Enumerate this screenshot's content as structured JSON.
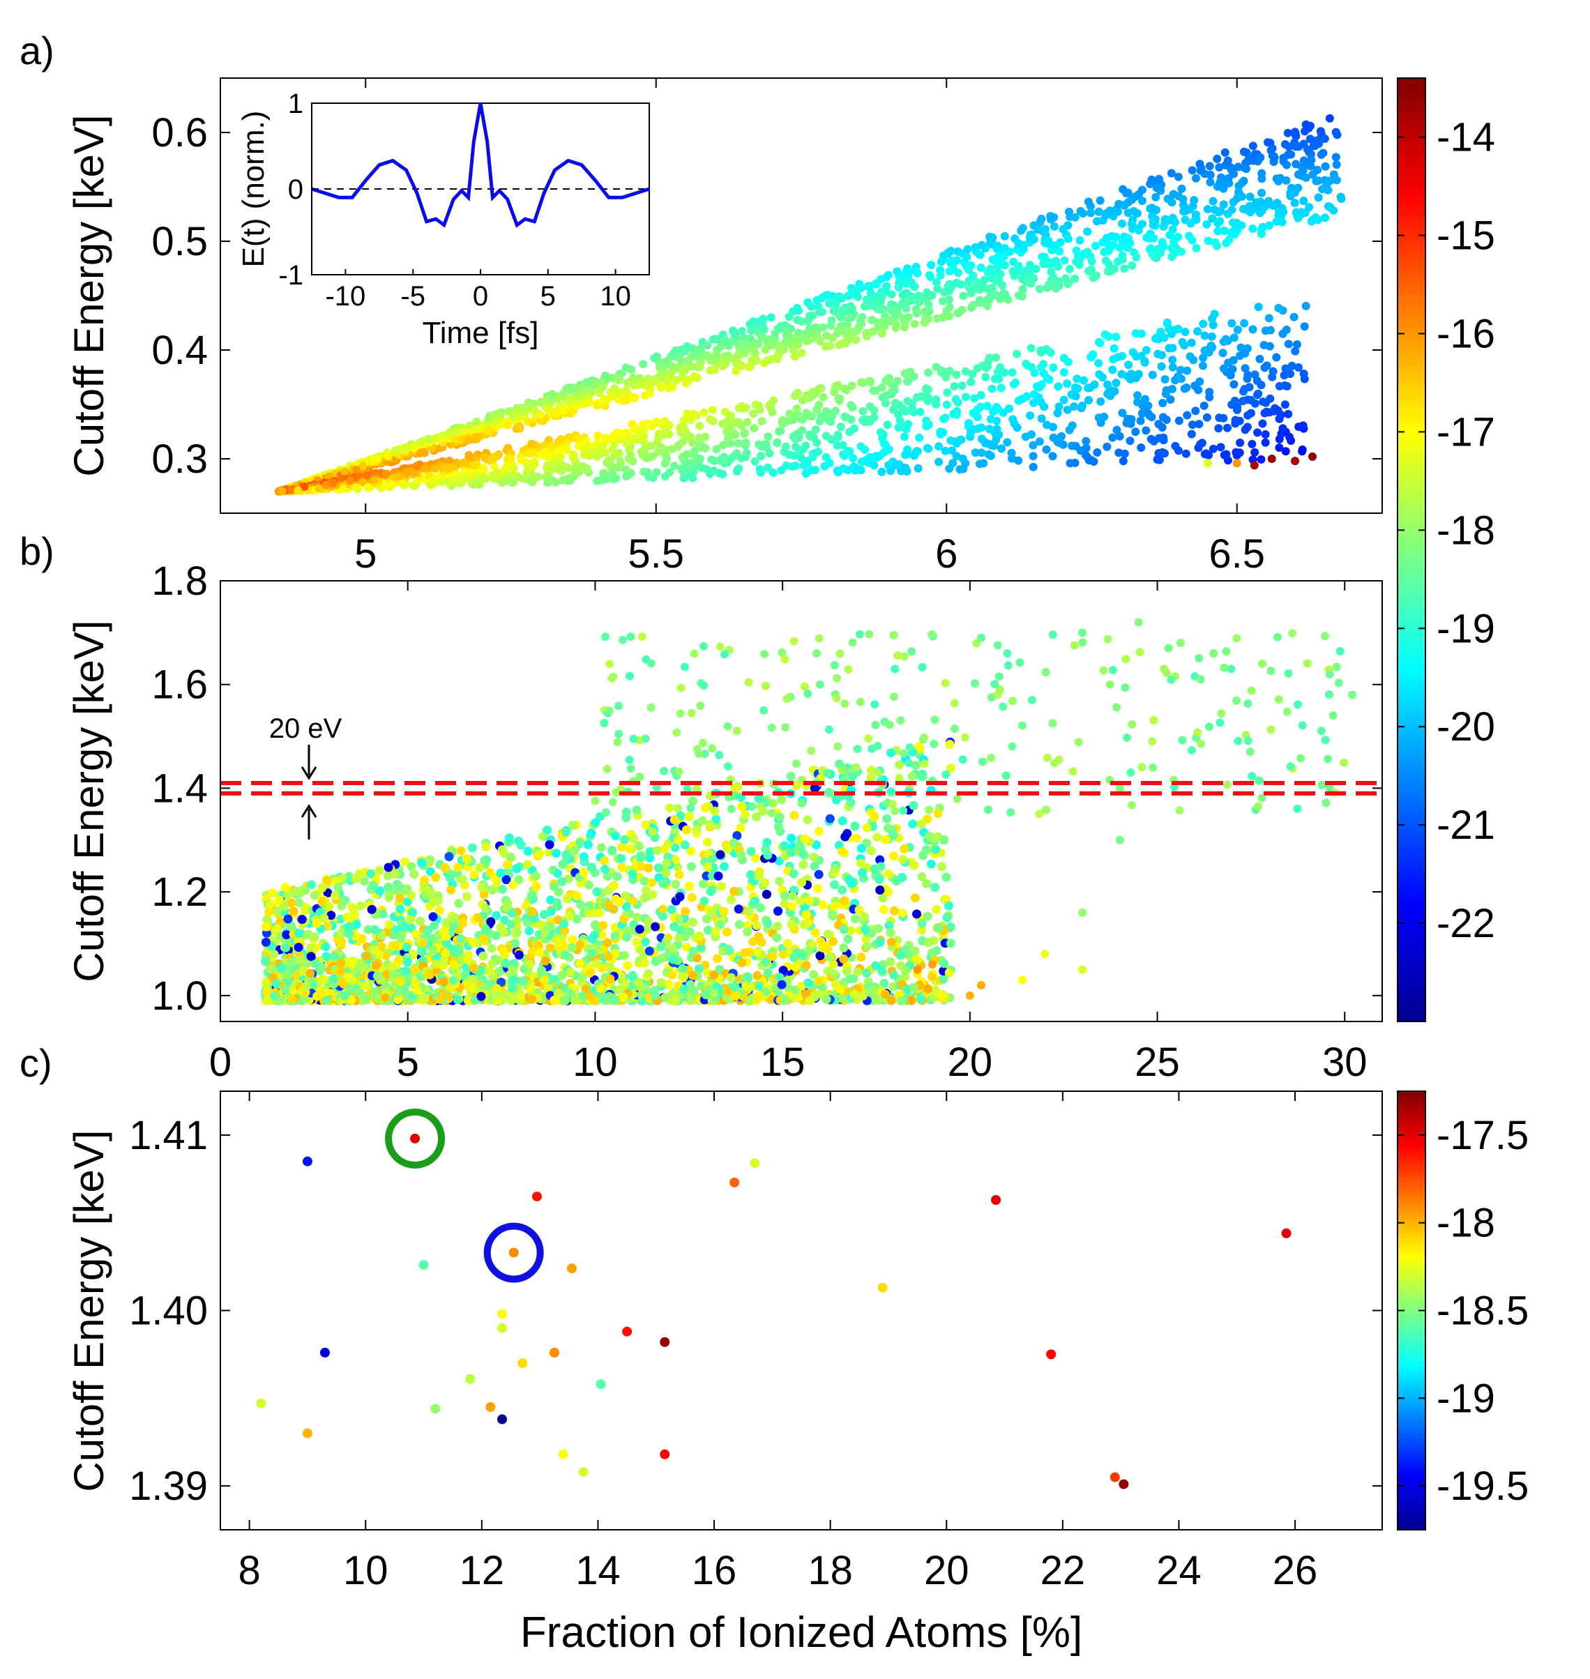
{
  "chart_data": [
    {
      "panel_label": "a)",
      "type": "scatter",
      "xlabel": "",
      "ylabel": "Cutoff Energy [keV]",
      "xlim": [
        4.75,
        6.75
      ],
      "ylim": [
        0.25,
        0.65
      ],
      "xticks": [
        "5",
        "5.5",
        "6",
        "6.5"
      ],
      "xtick_values": [
        5,
        5.5,
        6,
        6.5
      ],
      "yticks": [
        "0.3",
        "0.4",
        "0.5",
        "0.6"
      ],
      "ytick_values": [
        0.3,
        0.4,
        0.5,
        0.6
      ],
      "colorbar": {
        "ticks": [
          "-14",
          "-15",
          "-16",
          "-17",
          "-18",
          "-19",
          "-20",
          "-21",
          "-22"
        ],
        "tick_values": [
          -14,
          -15,
          -16,
          -17,
          -18,
          -19,
          -20,
          -21,
          -22
        ],
        "range": [
          -23,
          -13.4
        ]
      },
      "bands": [
        {
          "x_range": [
            4.85,
            6.68
          ],
          "lower_y": [
            0.27,
            0.525
          ],
          "upper_y": [
            0.27,
            0.62
          ],
          "color_start": -16.3,
          "color_end": -20.5
        },
        {
          "x_range": [
            4.85,
            6.62
          ],
          "lower_y": [
            0.27,
            0.3
          ],
          "upper_y": [
            0.27,
            0.45
          ],
          "color_start": -16.0,
          "color_end": -21.0
        }
      ],
      "points": [
        [
          6.5,
          0.296,
          -16.0
        ],
        [
          6.53,
          0.294,
          -13.8
        ],
        [
          6.56,
          0.3,
          -13.7
        ],
        [
          6.6,
          0.298,
          -13.8
        ],
        [
          6.63,
          0.302,
          -13.6
        ],
        [
          6.45,
          0.296,
          -17.3
        ]
      ],
      "inset": {
        "type": "line",
        "xlabel": "Time [fs]",
        "ylabel": "E(t) (norm.)",
        "xlim": [
          -12.5,
          12.5
        ],
        "ylim": [
          -1,
          1
        ],
        "xticks": [
          "-10",
          "-5",
          "0",
          "5",
          "10"
        ],
        "xtick_values": [
          -10,
          -5,
          0,
          5,
          10
        ],
        "yticks": [
          "1",
          "0",
          "-1"
        ],
        "ytick_values": [
          1,
          0,
          -1
        ],
        "x": [
          -12.5,
          -11.5,
          -10.5,
          -9.5,
          -8.5,
          -7.5,
          -6.5,
          -5.5,
          -4.7,
          -4.0,
          -3.3,
          -2.7,
          -2.0,
          -1.4,
          -0.9,
          -0.5,
          0,
          0.5,
          0.9,
          1.4,
          2.0,
          2.7,
          3.3,
          4.0,
          4.7,
          5.5,
          6.5,
          7.5,
          8.5,
          9.5,
          10.5,
          11.5,
          12.5
        ],
        "y": [
          0.0,
          -0.05,
          -0.1,
          -0.1,
          0.1,
          0.28,
          0.33,
          0.22,
          -0.05,
          -0.38,
          -0.35,
          -0.42,
          -0.12,
          -0.02,
          -0.1,
          0.55,
          1.0,
          0.55,
          -0.1,
          -0.02,
          -0.12,
          -0.42,
          -0.35,
          -0.38,
          -0.05,
          0.22,
          0.33,
          0.28,
          0.1,
          -0.1,
          -0.1,
          -0.05,
          0.0
        ]
      }
    },
    {
      "panel_label": "b)",
      "type": "scatter",
      "xlabel": "",
      "ylabel": "Cutoff Energy [keV]",
      "xlim": [
        0,
        31
      ],
      "ylim": [
        0.95,
        1.8
      ],
      "xticks": [
        "0",
        "5",
        "10",
        "15",
        "20",
        "25",
        "30"
      ],
      "xtick_values": [
        0,
        5,
        10,
        15,
        20,
        25,
        30
      ],
      "yticks": [
        "1.0",
        "1.2",
        "1.4",
        "1.6",
        "1.8"
      ],
      "ytick_values": [
        1.0,
        1.2,
        1.4,
        1.6,
        1.8
      ],
      "reference_lines": [
        1.39,
        1.41
      ],
      "annotation": "20 eV",
      "points": [
        [
          20.3,
          1.69,
          -18.5
        ],
        [
          21.0,
          1.66,
          -18.6
        ],
        [
          23.0,
          1.7,
          -18.4
        ],
        [
          24.5,
          1.72,
          -18.2
        ],
        [
          25.3,
          1.67,
          -18.3
        ],
        [
          26.5,
          1.66,
          -18.2
        ],
        [
          27.8,
          1.64,
          -18.0
        ],
        [
          29.6,
          1.62,
          -18.4
        ],
        [
          30.2,
          1.58,
          -18.3
        ],
        [
          18.0,
          1.63,
          -18.8
        ],
        [
          16.0,
          1.6,
          -18.4
        ],
        [
          14.5,
          1.55,
          -18.6
        ],
        [
          20.0,
          1.0,
          -16.3
        ],
        [
          20.3,
          1.02,
          -16.2
        ],
        [
          21.4,
          1.03,
          -17.0
        ],
        [
          22.0,
          1.08,
          -17.2
        ],
        [
          23.0,
          1.05,
          -17.3
        ],
        [
          23.0,
          1.16,
          -18.0
        ],
        [
          24.0,
          1.4,
          -18.1
        ],
        [
          24.0,
          1.3,
          -18.3
        ],
        [
          19.0,
          1.06,
          -16.1
        ],
        [
          18.6,
          1.05,
          -16.0
        ]
      ],
      "scatter_region": {
        "x_range": [
          1.2,
          19.5
        ],
        "y_range": [
          0.99,
          1.5
        ],
        "color_range": [
          -22.5,
          -16.0
        ]
      }
    },
    {
      "panel_label": "c)",
      "type": "scatter",
      "xlabel": "Fraction of Ionized Atoms [%]",
      "ylabel": "Cutoff Energy [keV]",
      "xlim": [
        7.5,
        27.5
      ],
      "ylim": [
        1.3875,
        1.4125
      ],
      "xticks": [
        "8",
        "10",
        "12",
        "14",
        "16",
        "18",
        "20",
        "22",
        "24",
        "26"
      ],
      "xtick_values": [
        8,
        10,
        12,
        14,
        16,
        18,
        20,
        22,
        24,
        26
      ],
      "yticks": [
        "1.39",
        "1.40",
        "1.41"
      ],
      "ytick_values": [
        1.39,
        1.4,
        1.41
      ],
      "colorbar": {
        "ticks": [
          "-17.5",
          "-18",
          "-18.5",
          "-19",
          "-19.5"
        ],
        "tick_values": [
          -17.5,
          -18,
          -18.5,
          -19,
          -19.5
        ],
        "range": [
          -19.75,
          -17.25
        ]
      },
      "points": [
        [
          10.85,
          1.4098,
          -17.5
        ],
        [
          9.0,
          1.4085,
          -19.4
        ],
        [
          12.95,
          1.4065,
          -17.6
        ],
        [
          16.35,
          1.4073,
          -17.8
        ],
        [
          16.7,
          1.4084,
          -18.3
        ],
        [
          20.85,
          1.4063,
          -17.5
        ],
        [
          25.85,
          1.4044,
          -17.5
        ],
        [
          12.55,
          1.4033,
          -17.9
        ],
        [
          13.55,
          1.4024,
          -17.95
        ],
        [
          11.0,
          1.4026,
          -18.6
        ],
        [
          18.9,
          1.4013,
          -18.1
        ],
        [
          12.35,
          1.3998,
          -18.2
        ],
        [
          12.35,
          1.399,
          -18.3
        ],
        [
          14.5,
          1.3988,
          -17.6
        ],
        [
          15.15,
          1.3982,
          -17.3
        ],
        [
          13.25,
          1.3976,
          -17.9
        ],
        [
          9.3,
          1.3976,
          -19.5
        ],
        [
          21.8,
          1.3975,
          -17.55
        ],
        [
          12.7,
          1.397,
          -18.1
        ],
        [
          11.8,
          1.3961,
          -18.35
        ],
        [
          14.05,
          1.3958,
          -18.6
        ],
        [
          8.2,
          1.3947,
          -18.3
        ],
        [
          11.2,
          1.3944,
          -18.45
        ],
        [
          12.15,
          1.3945,
          -17.95
        ],
        [
          12.35,
          1.3938,
          -19.7
        ],
        [
          9.0,
          1.393,
          -18.0
        ],
        [
          13.4,
          1.3918,
          -18.2
        ],
        [
          15.15,
          1.3918,
          -17.55
        ],
        [
          13.75,
          1.3908,
          -18.3
        ],
        [
          22.9,
          1.3905,
          -17.7
        ],
        [
          23.05,
          1.3901,
          -17.3
        ]
      ],
      "highlight_circles": [
        {
          "x": 10.85,
          "y": 1.4098,
          "color": "#1a9e1a"
        },
        {
          "x": 12.55,
          "y": 1.4033,
          "color": "#1010e0"
        }
      ]
    }
  ]
}
